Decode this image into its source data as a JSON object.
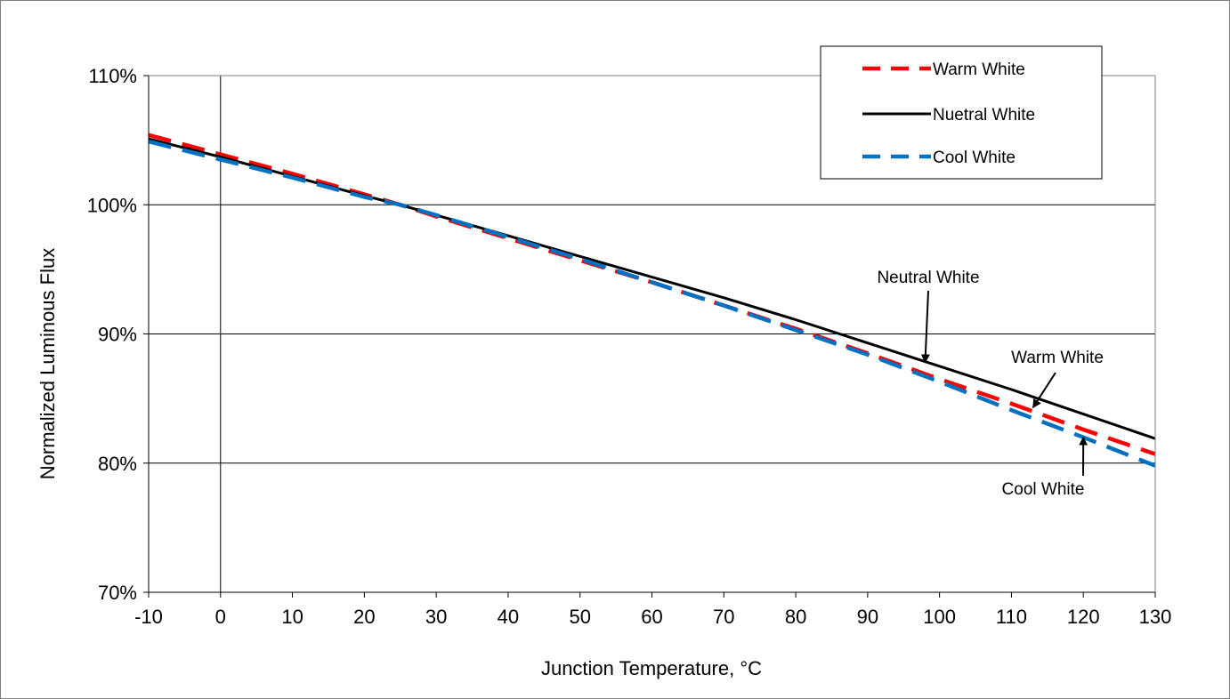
{
  "chart_data": {
    "type": "line",
    "xlabel": "Junction Temperature, °C",
    "ylabel": "Normalized Luminous Flux",
    "xlim": [
      -10,
      130
    ],
    "ylim": [
      70,
      110
    ],
    "x_ticks": [
      -10,
      0,
      10,
      20,
      30,
      40,
      50,
      60,
      70,
      80,
      90,
      100,
      110,
      120,
      130
    ],
    "y_ticks": [
      70,
      80,
      90,
      100,
      110
    ],
    "y_tick_labels": [
      "70%",
      "80%",
      "90%",
      "100%",
      "110%"
    ],
    "grid": {
      "horizontal": true,
      "vertical": false
    },
    "vertical_reference_line_x": 0,
    "legend_position": "top-right",
    "x": [
      -10,
      0,
      10,
      20,
      25,
      30,
      40,
      50,
      60,
      70,
      80,
      90,
      100,
      110,
      120,
      130
    ],
    "series": [
      {
        "name": "Warm White",
        "color": "#ff0000",
        "style": "dashed",
        "values": [
          105.4,
          103.9,
          102.4,
          100.8,
          100.0,
          99.1,
          97.4,
          95.7,
          94.0,
          92.2,
          90.4,
          88.5,
          86.5,
          84.6,
          82.6,
          80.7
        ]
      },
      {
        "name": "Nuetral White",
        "color": "#000000",
        "style": "solid",
        "values": [
          105.1,
          103.7,
          102.2,
          100.7,
          100.0,
          99.2,
          97.6,
          96.0,
          94.4,
          92.8,
          91.1,
          89.3,
          87.5,
          85.7,
          83.8,
          81.9
        ]
      },
      {
        "name": "Cool White",
        "color": "#0070c0",
        "style": "dashed",
        "values": [
          104.9,
          103.5,
          102.1,
          100.6,
          100.0,
          99.2,
          97.5,
          95.8,
          94.0,
          92.2,
          90.3,
          88.4,
          86.3,
          84.1,
          82.0,
          79.8
        ]
      }
    ],
    "annotations": [
      {
        "text": "Neutral White",
        "arrow_to": [
          98,
          87.8
        ]
      },
      {
        "text": "Warm White",
        "arrow_to": [
          113,
          84.3
        ]
      },
      {
        "text": "Cool White",
        "arrow_to": [
          120,
          82.0
        ]
      }
    ]
  }
}
